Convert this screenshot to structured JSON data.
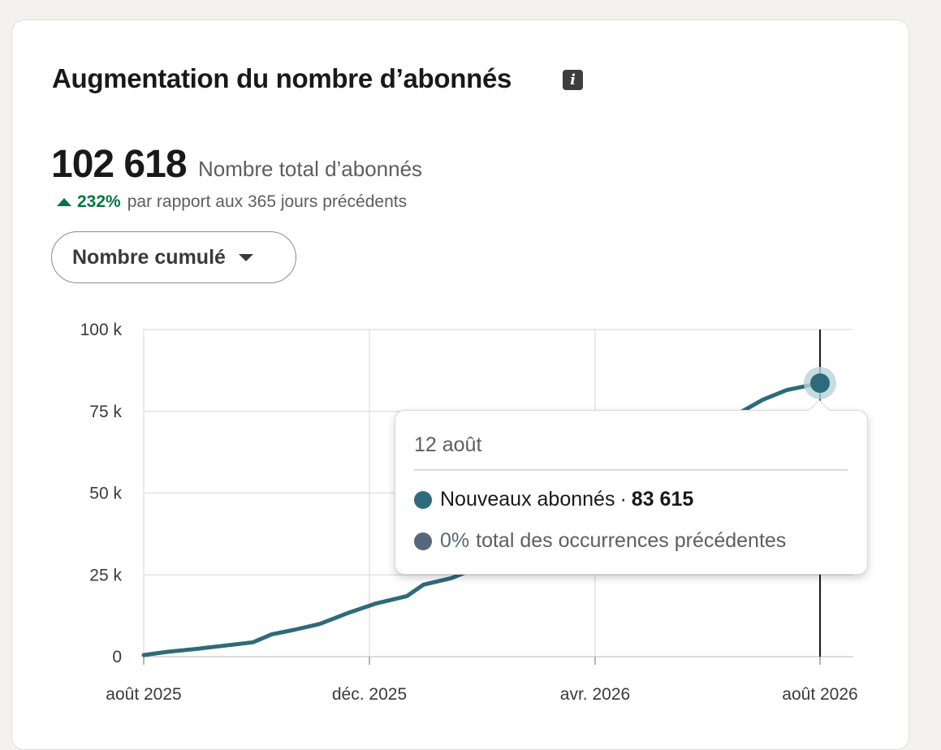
{
  "header": {
    "title": "Augmentation du nombre d’abonnés",
    "info_icon": "info-icon"
  },
  "summary": {
    "total_value": "102 618",
    "total_label": "Nombre total d’abonnés",
    "delta_pct": "232%",
    "delta_text": "par rapport aux 365 jours précédents",
    "delta_color": "#057642"
  },
  "filter": {
    "selected": "Nombre cumulé"
  },
  "chart_data": {
    "type": "line",
    "xlabel": "",
    "ylabel": "",
    "x_ticks": [
      "août 2025",
      "déc. 2025",
      "avr. 2026",
      "août 2026"
    ],
    "y_ticks": [
      "0",
      "25 k",
      "50 k",
      "75 k",
      "100 k"
    ],
    "ylim": [
      0,
      100000
    ],
    "xlim": [
      "2025-08-12",
      "2026-08-12"
    ],
    "grid": true,
    "series": [
      {
        "name": "Nouveaux abonnés",
        "color": "#2e6b7a",
        "points": [
          [
            "2025-08-12",
            500
          ],
          [
            "2025-08-25",
            1500
          ],
          [
            "2025-09-10",
            2400
          ],
          [
            "2025-09-25",
            3400
          ],
          [
            "2025-10-10",
            4400
          ],
          [
            "2025-10-20",
            6800
          ],
          [
            "2025-11-01",
            8200
          ],
          [
            "2025-11-15",
            10000
          ],
          [
            "2025-12-01",
            13500
          ],
          [
            "2025-12-15",
            16200
          ],
          [
            "2026-01-01",
            18500
          ],
          [
            "2026-01-10",
            22000
          ],
          [
            "2026-01-25",
            24000
          ],
          [
            "2026-02-05",
            26500
          ],
          [
            "2026-02-12",
            28000
          ],
          [
            "2026-07-01",
            75000
          ],
          [
            "2026-07-12",
            78500
          ],
          [
            "2026-07-25",
            81500
          ],
          [
            "2026-08-12",
            83615
          ]
        ]
      }
    ],
    "highlight": {
      "x": "2026-08-12",
      "y": 83615
    }
  },
  "tooltip": {
    "date": "12 août",
    "series_label": "Nouveaux abonnés",
    "series_sep": "·",
    "series_value": "83 615",
    "series_color": "#2e6b7a",
    "compare_pct": "0%",
    "compare_text": "total des occurrences précédentes",
    "compare_color": "#56687a"
  }
}
